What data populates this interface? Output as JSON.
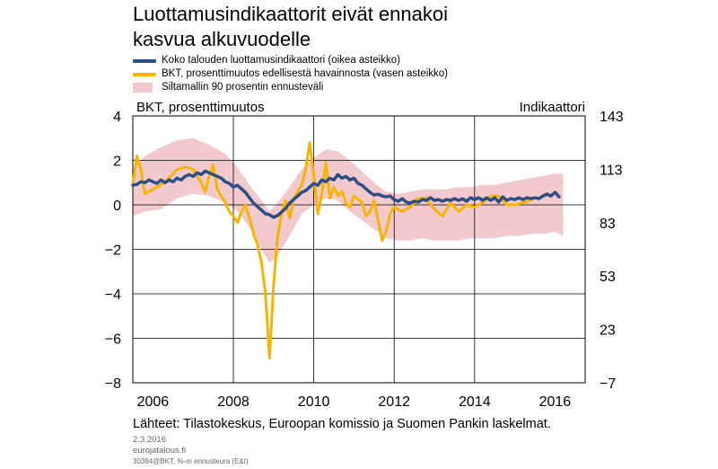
{
  "title_lines": [
    "Luottamusindikaattorit eivät ennakoi",
    "kasvua alkuvuodelle"
  ],
  "source": "Lähteet: Tilastokeskus, Euroopan komissio ja Suomen Pankin laskelmat.",
  "date": "2.3.2016",
  "site": "eurojatalous.fi",
  "code": "30384@BKT, %-m ennusteura (E&t)",
  "colors": {
    "indicator": "#2e4f86",
    "gdp": "#f7b500",
    "band": "#f2c9cc"
  },
  "chart_data": {
    "type": "line",
    "legend": [
      "Koko talouden luottamusindikaattori (oikea asteikko)",
      "BKT, prosenttimuutos edellisestä havainnosta (vasen asteikko)",
      "Siltamallin 90 prosentin ennusteväli"
    ],
    "ylabel_left": "BKT, prosenttimuutos",
    "ylabel_right": "Indikaattori",
    "left_axis": {
      "ticks": [
        "4",
        "2",
        "0",
        "−2",
        "−4",
        "−6",
        "−8"
      ],
      "range": [
        -8,
        4
      ]
    },
    "right_axis": {
      "ticks": [
        "143",
        "113",
        "83",
        "53",
        "23",
        "−7"
      ],
      "range": [
        -7,
        143
      ]
    },
    "x_ticks": [
      "2006",
      "2008",
      "2010",
      "2012",
      "2014",
      "2016"
    ],
    "x_range": [
      2005.5,
      2016.75
    ],
    "grid": true,
    "series": [
      {
        "name": "Koko talouden luottamusindikaattori (oikea asteikko)",
        "axis": "right",
        "points": [
          [
            2005.5,
            104
          ],
          [
            2005.6,
            104.5
          ],
          [
            2005.7,
            106
          ],
          [
            2005.8,
            105.5
          ],
          [
            2005.9,
            107
          ],
          [
            2006.0,
            106
          ],
          [
            2006.1,
            105
          ],
          [
            2006.2,
            107
          ],
          [
            2006.3,
            105.5
          ],
          [
            2006.4,
            107
          ],
          [
            2006.5,
            106
          ],
          [
            2006.6,
            108
          ],
          [
            2006.7,
            107
          ],
          [
            2006.8,
            109
          ],
          [
            2006.9,
            110
          ],
          [
            2007.0,
            109
          ],
          [
            2007.1,
            111
          ],
          [
            2007.2,
            110
          ],
          [
            2007.3,
            112
          ],
          [
            2007.4,
            111
          ],
          [
            2007.5,
            110
          ],
          [
            2007.6,
            109
          ],
          [
            2007.7,
            108
          ],
          [
            2007.8,
            106
          ],
          [
            2007.9,
            105
          ],
          [
            2008.0,
            103
          ],
          [
            2008.1,
            104
          ],
          [
            2008.2,
            102
          ],
          [
            2008.3,
            100
          ],
          [
            2008.4,
            97
          ],
          [
            2008.5,
            94
          ],
          [
            2008.6,
            92
          ],
          [
            2008.7,
            90
          ],
          [
            2008.8,
            88
          ],
          [
            2008.9,
            87.5
          ],
          [
            2009.0,
            86
          ],
          [
            2009.1,
            87
          ],
          [
            2009.2,
            89
          ],
          [
            2009.3,
            91
          ],
          [
            2009.4,
            94
          ],
          [
            2009.5,
            96
          ],
          [
            2009.6,
            98
          ],
          [
            2009.7,
            100
          ],
          [
            2009.8,
            101
          ],
          [
            2009.9,
            103
          ],
          [
            2010.0,
            105
          ],
          [
            2010.1,
            104
          ],
          [
            2010.2,
            107
          ],
          [
            2010.3,
            106
          ],
          [
            2010.4,
            108
          ],
          [
            2010.5,
            107
          ],
          [
            2010.6,
            110
          ],
          [
            2010.7,
            108
          ],
          [
            2010.8,
            109
          ],
          [
            2010.9,
            107
          ],
          [
            2011.0,
            108
          ],
          [
            2011.1,
            105
          ],
          [
            2011.2,
            104
          ],
          [
            2011.3,
            102
          ],
          [
            2011.4,
            100
          ],
          [
            2011.5,
            98.5
          ],
          [
            2011.6,
            99
          ],
          [
            2011.7,
            98
          ],
          [
            2011.8,
            97.5
          ],
          [
            2011.9,
            98
          ],
          [
            2012.0,
            96
          ],
          [
            2012.1,
            95
          ],
          [
            2012.2,
            96.5
          ],
          [
            2012.3,
            94.5
          ],
          [
            2012.4,
            94
          ],
          [
            2012.5,
            95
          ],
          [
            2012.6,
            94.5
          ],
          [
            2012.7,
            96
          ],
          [
            2012.8,
            95.5
          ],
          [
            2012.9,
            97
          ],
          [
            2013.0,
            95.5
          ],
          [
            2013.1,
            96
          ],
          [
            2013.2,
            95
          ],
          [
            2013.3,
            96
          ],
          [
            2013.4,
            95.5
          ],
          [
            2013.5,
            96.5
          ],
          [
            2013.6,
            95.5
          ],
          [
            2013.7,
            96.5
          ],
          [
            2013.8,
            95
          ],
          [
            2013.9,
            97
          ],
          [
            2014.0,
            96
          ],
          [
            2014.1,
            97
          ],
          [
            2014.2,
            95.5
          ],
          [
            2014.3,
            97
          ],
          [
            2014.4,
            95.5
          ],
          [
            2014.5,
            97
          ],
          [
            2014.6,
            94.5
          ],
          [
            2014.7,
            97.5
          ],
          [
            2014.8,
            95.5
          ],
          [
            2014.9,
            96.5
          ],
          [
            2015.0,
            96
          ],
          [
            2015.1,
            97
          ],
          [
            2015.2,
            96
          ],
          [
            2015.3,
            97
          ],
          [
            2015.4,
            96.5
          ],
          [
            2015.5,
            97
          ],
          [
            2015.6,
            96.5
          ],
          [
            2015.7,
            98
          ],
          [
            2015.8,
            99
          ],
          [
            2015.9,
            98
          ],
          [
            2016.0,
            100
          ],
          [
            2016.1,
            97.5
          ]
        ]
      },
      {
        "name": "BKT, prosenttimuutos edellisestä havainnosta (vasen asteikko)",
        "axis": "left",
        "points": [
          [
            2005.5,
            0.9
          ],
          [
            2005.6,
            2.2
          ],
          [
            2005.7,
            1.6
          ],
          [
            2005.8,
            0.5
          ],
          [
            2006.0,
            0.7
          ],
          [
            2006.2,
            0.9
          ],
          [
            2006.4,
            1.2
          ],
          [
            2006.6,
            1.6
          ],
          [
            2006.8,
            1.7
          ],
          [
            2007.0,
            1.6
          ],
          [
            2007.2,
            1.0
          ],
          [
            2007.3,
            0.6
          ],
          [
            2007.4,
            1.3
          ],
          [
            2007.5,
            1.8
          ],
          [
            2007.6,
            0.7
          ],
          [
            2007.7,
            0.4
          ],
          [
            2007.8,
            0.1
          ],
          [
            2007.9,
            -0.3
          ],
          [
            2008.0,
            -0.5
          ],
          [
            2008.1,
            -0.8
          ],
          [
            2008.2,
            -0.3
          ],
          [
            2008.3,
            0.0
          ],
          [
            2008.4,
            -0.6
          ],
          [
            2008.5,
            -1.3
          ],
          [
            2008.6,
            -1.8
          ],
          [
            2008.7,
            -2.6
          ],
          [
            2008.8,
            -4.0
          ],
          [
            2008.9,
            -6.9
          ],
          [
            2009.0,
            -3.6
          ],
          [
            2009.1,
            -1.4
          ],
          [
            2009.2,
            -0.4
          ],
          [
            2009.3,
            0.2
          ],
          [
            2009.4,
            -0.6
          ],
          [
            2009.5,
            0.3
          ],
          [
            2009.6,
            0.6
          ],
          [
            2009.7,
            0.9
          ],
          [
            2009.8,
            1.6
          ],
          [
            2009.9,
            2.8
          ],
          [
            2010.0,
            1.3
          ],
          [
            2010.1,
            -0.4
          ],
          [
            2010.2,
            0.5
          ],
          [
            2010.3,
            1.9
          ],
          [
            2010.4,
            0.3
          ],
          [
            2010.5,
            0.8
          ],
          [
            2010.6,
            0.4
          ],
          [
            2010.7,
            0.6
          ],
          [
            2010.8,
            0.1
          ],
          [
            2010.9,
            -0.1
          ],
          [
            2011.0,
            0.4
          ],
          [
            2011.2,
            0.1
          ],
          [
            2011.3,
            -0.5
          ],
          [
            2011.4,
            -0.3
          ],
          [
            2011.5,
            0.2
          ],
          [
            2011.6,
            -0.7
          ],
          [
            2011.7,
            -1.6
          ],
          [
            2011.8,
            -1.2
          ],
          [
            2011.9,
            -0.4
          ],
          [
            2012.0,
            -0.1
          ],
          [
            2012.2,
            -0.3
          ],
          [
            2012.4,
            -0.1
          ],
          [
            2012.6,
            0.3
          ],
          [
            2012.8,
            0.3
          ],
          [
            2013.0,
            -0.2
          ],
          [
            2013.2,
            -0.5
          ],
          [
            2013.4,
            0.1
          ],
          [
            2013.6,
            -0.3
          ],
          [
            2013.8,
            0.0
          ],
          [
            2014.0,
            -0.1
          ],
          [
            2014.2,
            0.1
          ],
          [
            2014.4,
            0.4
          ],
          [
            2014.6,
            0.4
          ],
          [
            2014.8,
            0.0
          ],
          [
            2015.0,
            0.0
          ],
          [
            2015.2,
            0.1
          ],
          [
            2015.4,
            0.2
          ]
        ]
      }
    ],
    "band": {
      "name": "Siltamallin 90 prosentin ennusteväli",
      "axis": "left",
      "points": [
        [
          2005.5,
          -0.5,
          1.6
        ],
        [
          2005.8,
          -0.3,
          2.2
        ],
        [
          2006.2,
          -0.2,
          2.6
        ],
        [
          2006.6,
          0.3,
          2.9
        ],
        [
          2007.0,
          0.5,
          3.0
        ],
        [
          2007.4,
          0.4,
          2.7
        ],
        [
          2007.8,
          0.1,
          2.3
        ],
        [
          2008.1,
          -0.3,
          1.7
        ],
        [
          2008.4,
          -1.0,
          0.9
        ],
        [
          2008.7,
          -2.0,
          0.2
        ],
        [
          2008.9,
          -2.6,
          -0.3
        ],
        [
          2009.1,
          -2.3,
          0.1
        ],
        [
          2009.4,
          -1.4,
          0.8
        ],
        [
          2009.7,
          -0.4,
          1.6
        ],
        [
          2010.0,
          0.0,
          2.1
        ],
        [
          2010.3,
          0.3,
          2.5
        ],
        [
          2010.6,
          0.2,
          2.4
        ],
        [
          2010.9,
          -0.3,
          2.0
        ],
        [
          2011.2,
          -0.7,
          1.5
        ],
        [
          2011.5,
          -1.1,
          1.0
        ],
        [
          2011.8,
          -1.5,
          0.6
        ],
        [
          2012.1,
          -1.6,
          0.5
        ],
        [
          2012.4,
          -1.6,
          0.6
        ],
        [
          2012.7,
          -1.5,
          0.7
        ],
        [
          2013.0,
          -1.6,
          0.7
        ],
        [
          2013.3,
          -1.6,
          0.7
        ],
        [
          2013.6,
          -1.6,
          0.8
        ],
        [
          2013.9,
          -1.5,
          0.8
        ],
        [
          2014.2,
          -1.5,
          0.9
        ],
        [
          2014.5,
          -1.5,
          0.9
        ],
        [
          2014.8,
          -1.4,
          1.0
        ],
        [
          2015.1,
          -1.4,
          1.1
        ],
        [
          2015.4,
          -1.3,
          1.2
        ],
        [
          2015.7,
          -1.3,
          1.3
        ],
        [
          2016.0,
          -1.2,
          1.4
        ],
        [
          2016.2,
          -1.4,
          1.4
        ]
      ]
    }
  }
}
